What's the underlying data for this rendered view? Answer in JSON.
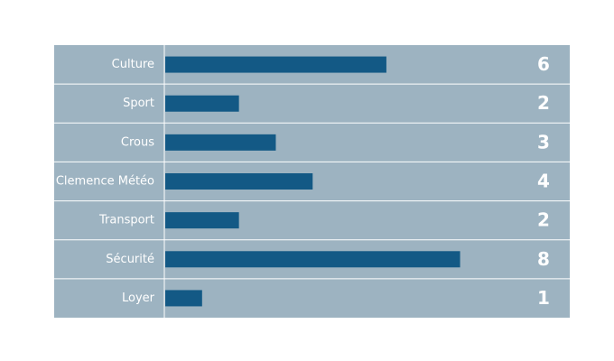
{
  "chart_data": {
    "type": "bar",
    "orientation": "horizontal",
    "categories": [
      "Culture",
      "Sport",
      "Crous",
      "Clemence Météo",
      "Transport",
      "Sécurité",
      "Loyer"
    ],
    "values": [
      6,
      2,
      3,
      4,
      2,
      8,
      1
    ],
    "value_labels": [
      "6",
      "2",
      "3",
      "4",
      "2",
      "8",
      "1"
    ],
    "xlim": [
      0,
      11
    ],
    "grid": false,
    "colors": {
      "panel": "#9db3c1",
      "bar": "#135985",
      "separator": "#ffffff",
      "text": "#ffffff"
    }
  }
}
